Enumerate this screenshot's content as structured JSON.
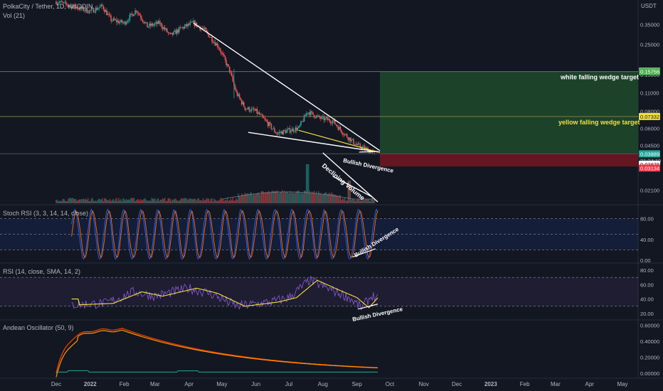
{
  "header": {
    "main_title": "PolkaCity / Tether, 1D, KUCOIN",
    "vol_label": "Vol (21)",
    "currency": "USDT"
  },
  "colors": {
    "bg": "#131722",
    "up": "#26a69a",
    "down": "#ef5350",
    "wedge": "#ffffff",
    "yellow": "#f2e03a",
    "target_zone": "#1f4a2a",
    "stop_zone": "#6a1622",
    "stoch_k": "#2962ff",
    "stoch_d": "#ff6d00",
    "rsi": "#7e57c2",
    "rsi_ma": "#f2e03a",
    "andean_bull": "#ff3d00",
    "andean_bear": "#ff9800",
    "andean_signal": "#26a69a"
  },
  "chart_data": [
    {
      "type": "candlestick",
      "title": "PolkaCity / Tether, 1D, KUCOIN",
      "y_scale": "log",
      "ylim": [
        0.018,
        0.52
      ],
      "ytick_labels": [
        "0.35000",
        "0.25000",
        "0.15000",
        "0.11000",
        "0.08000",
        "0.06000",
        "0.04500",
        "0.02100"
      ],
      "ytick_values": [
        0.35,
        0.25,
        0.15,
        0.11,
        0.08,
        0.06,
        0.045,
        0.021
      ],
      "price_path": [
        [
          "2021-12-01",
          0.52
        ],
        [
          "2021-12-15",
          0.48
        ],
        [
          "2022-01-01",
          0.44
        ],
        [
          "2022-01-12",
          0.48
        ],
        [
          "2022-01-20",
          0.38
        ],
        [
          "2022-02-01",
          0.36
        ],
        [
          "2022-02-12",
          0.45
        ],
        [
          "2022-02-22",
          0.34
        ],
        [
          "2022-03-05",
          0.36
        ],
        [
          "2022-03-15",
          0.29
        ],
        [
          "2022-03-25",
          0.33
        ],
        [
          "2022-04-05",
          0.36
        ],
        [
          "2022-04-15",
          0.32
        ],
        [
          "2022-04-28",
          0.24
        ],
        [
          "2022-05-08",
          0.16
        ],
        [
          "2022-05-14",
          0.11
        ],
        [
          "2022-05-22",
          0.085
        ],
        [
          "2022-06-01",
          0.08
        ],
        [
          "2022-06-12",
          0.065
        ],
        [
          "2022-06-20",
          0.055
        ],
        [
          "2022-07-01",
          0.058
        ],
        [
          "2022-07-10",
          0.06
        ],
        [
          "2022-07-18",
          0.08
        ],
        [
          "2022-07-28",
          0.072
        ],
        [
          "2022-08-10",
          0.068
        ],
        [
          "2022-08-20",
          0.055
        ],
        [
          "2022-09-01",
          0.045
        ],
        [
          "2022-09-10",
          0.042
        ],
        [
          "2022-09-17",
          0.039
        ]
      ],
      "annotations": {
        "white_wedge_upper": [
          [
            "2022-04-05",
            0.36
          ],
          [
            "2022-09-22",
            0.041
          ]
        ],
        "white_wedge_lower": [
          [
            "2022-05-25",
            0.056
          ],
          [
            "2022-09-22",
            0.04
          ]
        ],
        "yellow_wedge_upper": [
          [
            "2022-07-10",
            0.058
          ],
          [
            "2022-09-20",
            0.04
          ]
        ],
        "target_white": 0.15756,
        "target_yellow": 0.07332,
        "stop_level": 0.03134,
        "white_target_label": "white falling wedge target",
        "yellow_target_label": "yellow falling wedge target",
        "bullish_divergence_label": "Bullish Divergence",
        "declining_volume_label": "Declining Volume"
      },
      "price_tags": [
        {
          "value": "0.15852",
          "price": 0.15852,
          "kind": "white"
        },
        {
          "value": "0.15756",
          "price": 0.15756,
          "kind": "green"
        },
        {
          "value": "0.07332",
          "price": 0.07332,
          "kind": "yellow"
        },
        {
          "value": "0.03889",
          "price": 0.03889,
          "kind": "teal"
        },
        {
          "value": "21:34:10",
          "price": 0.0345,
          "kind": "dark"
        },
        {
          "value": "0.03876",
          "price": 0.0325,
          "kind": "white"
        },
        {
          "value": "0.03134",
          "price": 0.0305,
          "kind": "red"
        }
      ]
    },
    {
      "type": "line",
      "title": "Stoch RSI (3, 3, 14, 14, close)",
      "ylim": [
        0,
        100
      ],
      "ytick_labels": [
        "80.00",
        "40.00",
        "0.00"
      ],
      "ytick_values": [
        80,
        40,
        0
      ],
      "bands": [
        20,
        50,
        80
      ],
      "divergence_label": "Bullish Divergence"
    },
    {
      "type": "line",
      "title": "RSI (14, close, SMA, 14, 2)",
      "ylim": [
        15,
        85
      ],
      "ytick_labels": [
        "80.00",
        "60.00",
        "40.00",
        "20.00"
      ],
      "ytick_values": [
        80,
        60,
        40,
        20
      ],
      "bands": [
        30,
        70
      ],
      "divergence_label": "Bullish Divergence"
    },
    {
      "type": "line",
      "title": "Andean Oscillator (50, 9)",
      "ylim": [
        -0.02,
        0.62
      ],
      "ytick_labels": [
        "0.60000",
        "0.40000",
        "0.20000",
        "0.00000"
      ],
      "ytick_values": [
        0.6,
        0.4,
        0.2,
        0
      ]
    }
  ],
  "x_axis": {
    "labels": [
      "Dec",
      "2022",
      "Feb",
      "Mar",
      "Apr",
      "May",
      "Jun",
      "Jul",
      "Aug",
      "Sep",
      "Oct",
      "Nov",
      "Dec",
      "2023",
      "Feb",
      "Mar",
      "Apr",
      "May"
    ],
    "dates": [
      "2021-12-01",
      "2022-01-01",
      "2022-02-01",
      "2022-03-01",
      "2022-04-01",
      "2022-05-01",
      "2022-06-01",
      "2022-07-01",
      "2022-08-01",
      "2022-09-01",
      "2022-10-01",
      "2022-11-01",
      "2022-12-01",
      "2023-01-01",
      "2023-02-01",
      "2023-03-01",
      "2023-04-01",
      "2023-05-01"
    ]
  }
}
